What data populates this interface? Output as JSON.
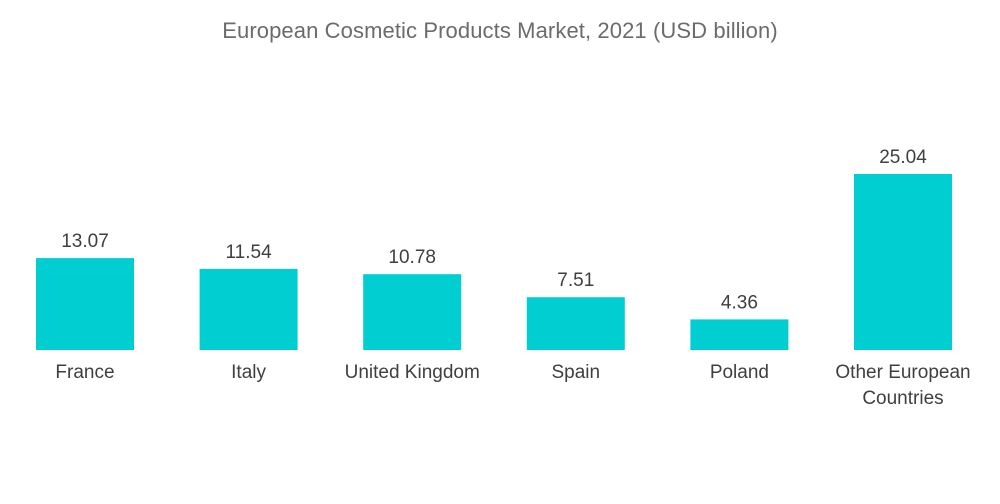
{
  "chart_data": {
    "type": "bar",
    "title": "European Cosmetic Products Market, 2021 (USD billion)",
    "categories": [
      "France",
      "Italy",
      "United Kingdom",
      "Spain",
      "Poland",
      "Other European Countries"
    ],
    "category_lines": [
      [
        "France"
      ],
      [
        "Italy"
      ],
      [
        "United Kingdom"
      ],
      [
        "Spain"
      ],
      [
        "Poland"
      ],
      [
        "Other European",
        "Countries"
      ]
    ],
    "values": [
      13.07,
      11.54,
      10.78,
      7.51,
      4.36,
      25.04
    ],
    "value_labels": [
      "13.07",
      "11.54",
      "10.78",
      "7.51",
      "4.36",
      "25.04"
    ],
    "xlabel": "",
    "ylabel": "",
    "ylim": [
      0,
      25.04
    ],
    "grid": false,
    "bar_color": "#00ced1"
  }
}
